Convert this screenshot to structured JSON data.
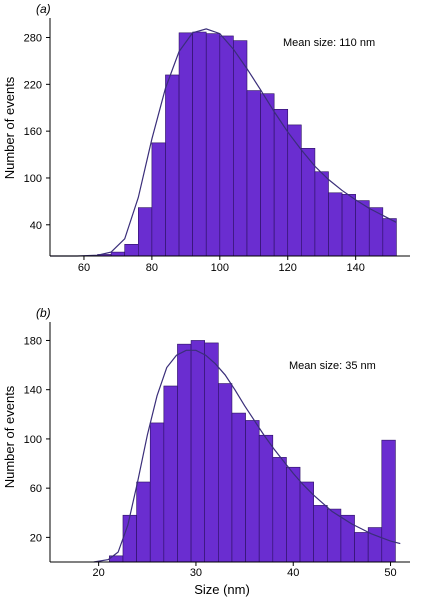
{
  "chart_data": [
    {
      "type": "bar",
      "panel_label": "(a)",
      "ylabel": "Number of events",
      "xlabel": "",
      "annotation": "Mean size: 110 nm",
      "xlim": [
        50,
        156
      ],
      "ylim": [
        0,
        305
      ],
      "xticks": [
        60,
        80,
        100,
        120,
        140
      ],
      "yticks": [
        40,
        100,
        160,
        220,
        280
      ],
      "bin_width": 4,
      "bin_edges_start": [
        64,
        68,
        72,
        76,
        80,
        84,
        88,
        92,
        96,
        100,
        104,
        108,
        112,
        116,
        120,
        124,
        128,
        132,
        136,
        140,
        144,
        148
      ],
      "values": [
        2,
        5,
        15,
        62,
        145,
        232,
        286,
        287,
        285,
        282,
        276,
        212,
        208,
        188,
        168,
        138,
        108,
        81,
        79,
        71,
        62,
        48
      ],
      "bar_color": "#6a2dd0",
      "fit_curve": {
        "x": [
          50,
          58,
          64,
          68,
          72,
          76,
          80,
          84,
          88,
          92,
          96,
          100,
          104,
          108,
          112,
          116,
          120,
          124,
          128,
          132,
          136,
          140,
          144,
          148,
          152
        ],
        "y": [
          0,
          0,
          1,
          5,
          22,
          75,
          150,
          215,
          262,
          286,
          291,
          285,
          265,
          240,
          213,
          185,
          159,
          136,
          115,
          98,
          84,
          72,
          61,
          52,
          43
        ]
      }
    },
    {
      "type": "bar",
      "panel_label": "(b)",
      "ylabel": "Number of events",
      "xlabel": "Size (nm)",
      "annotation": "Mean size:  35 nm",
      "xlim": [
        15,
        52
      ],
      "ylim": [
        0,
        195
      ],
      "xticks": [
        20,
        30,
        40,
        50
      ],
      "yticks": [
        20,
        60,
        100,
        140,
        180
      ],
      "bin_width": 1.4,
      "bin_edges_start": [
        21.1,
        22.5,
        23.9,
        25.3,
        26.7,
        28.1,
        29.5,
        30.9,
        32.3,
        33.7,
        35.1,
        36.5,
        37.9,
        39.3,
        40.7,
        42.1,
        43.5,
        44.9,
        46.3,
        47.7,
        49.1
      ],
      "values": [
        5,
        38,
        65,
        113,
        143,
        177,
        180,
        178,
        145,
        121,
        115,
        103,
        85,
        77,
        65,
        46,
        43,
        38,
        24,
        28,
        99
      ],
      "bar_color": "#6a2dd0",
      "fit_curve": {
        "x": [
          19.5,
          21,
          22,
          23,
          24,
          25,
          26,
          27,
          28,
          29,
          30,
          31,
          32,
          33,
          34,
          35,
          36,
          37,
          38,
          39,
          40,
          41,
          42,
          43,
          44,
          45,
          46,
          47,
          48,
          49,
          50,
          51
        ],
        "y": [
          0,
          2,
          8,
          30,
          65,
          103,
          135,
          158,
          168,
          172,
          172,
          168,
          161,
          152,
          140,
          127,
          115,
          103,
          92,
          82,
          72,
          63,
          55,
          48,
          41,
          36,
          31,
          27,
          23,
          20,
          17,
          15
        ]
      }
    }
  ]
}
